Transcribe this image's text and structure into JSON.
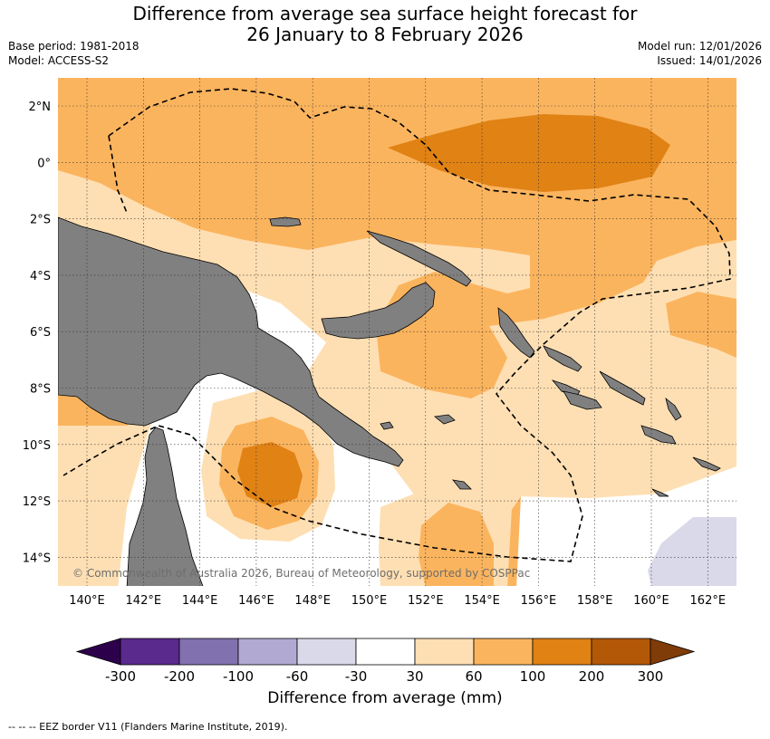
{
  "title_line1": "Difference from average sea surface height forecast for",
  "title_line2": "26 January to 8 February 2026",
  "base_period": "Base period: 1981-2018",
  "model": "Model: ACCESS-S2",
  "model_run": "Model run: 12/01/2026",
  "issued": "Issued: 14/01/2026",
  "copyright": "© Commonwealth of Australia 2026, Bureau of Meteorology, supported by COSPPac",
  "colorbar_label": "Difference from average (mm)",
  "footnote": "--  --  -- EEZ border V11 (Flanders Marine Institute, 2019).",
  "lat_labels": [
    "2°N",
    "0°",
    "2°S",
    "4°S",
    "6°S",
    "8°S",
    "10°S",
    "12°S",
    "14°S"
  ],
  "lon_labels": [
    "140°E",
    "142°E",
    "144°E",
    "146°E",
    "148°E",
    "150°E",
    "152°E",
    "154°E",
    "156°E",
    "158°E",
    "160°E",
    "162°E"
  ],
  "colorbar_ticks": [
    "-300",
    "-200",
    "-100",
    "-60",
    "-30",
    "30",
    "60",
    "100",
    "200",
    "300"
  ],
  "colorbar_colors": [
    "#5a2a8c",
    "#8171ae",
    "#b2a9d2",
    "#d9d9ea",
    "#ffffff",
    "#fedfb3",
    "#fbb45e",
    "#e08214",
    "#b35806"
  ],
  "colorbar_low_color": "#2d004b",
  "colorbar_high_color": "#7f3b08",
  "land_color": "#808080"
}
